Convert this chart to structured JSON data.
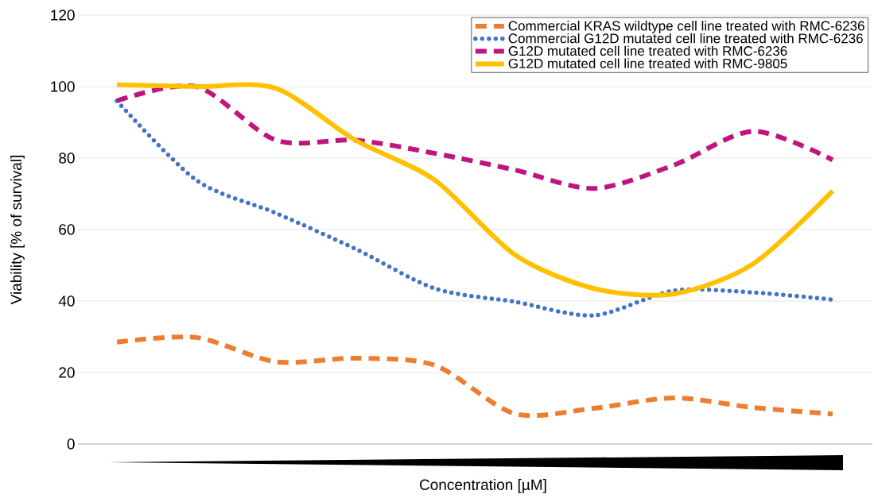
{
  "chart_data": {
    "type": "line",
    "xlabel": "Concentration [µM]",
    "ylabel": "Viability [% of survival]",
    "categories": [
      null,
      null,
      null,
      null,
      null,
      null,
      null,
      null,
      null,
      null
    ],
    "series": [
      {
        "name": "Commercial KRAS wildtype cell line treated with RMC-6236",
        "color": "#ed7d31",
        "line_style": "dashed",
        "values": [
          28.5,
          29.8,
          23,
          24,
          22,
          8.5,
          10,
          12.9,
          10.2,
          8.4
        ]
      },
      {
        "name": "Commercial G12D mutated cell line treated with RMC-6236",
        "color": "#4472c4",
        "line_style": "dotted",
        "values": [
          96,
          73.8,
          64.6,
          54.6,
          43.5,
          39.8,
          36,
          42.9,
          42.4,
          40.4
        ]
      },
      {
        "name": "G12D mutated cell line treated with RMC-6236",
        "color": "#c0157f",
        "line_style": "dashed",
        "values": [
          96,
          100,
          85,
          85,
          81.3,
          76.7,
          71.5,
          78,
          87.5,
          79.5
        ]
      },
      {
        "name": "G12D mutated cell line treated with RMC-9805",
        "color": "#ffc000",
        "line_style": "solid",
        "values": [
          100.5,
          100,
          99.5,
          85,
          73.8,
          53,
          43.5,
          42,
          50.4,
          70.8
        ]
      }
    ],
    "ylim": [
      0,
      120
    ],
    "yticks": [
      0,
      20,
      40,
      60,
      80,
      100,
      120
    ],
    "grid": "y",
    "legend": "top right",
    "tick_labels": "y",
    "marker": "none"
  }
}
